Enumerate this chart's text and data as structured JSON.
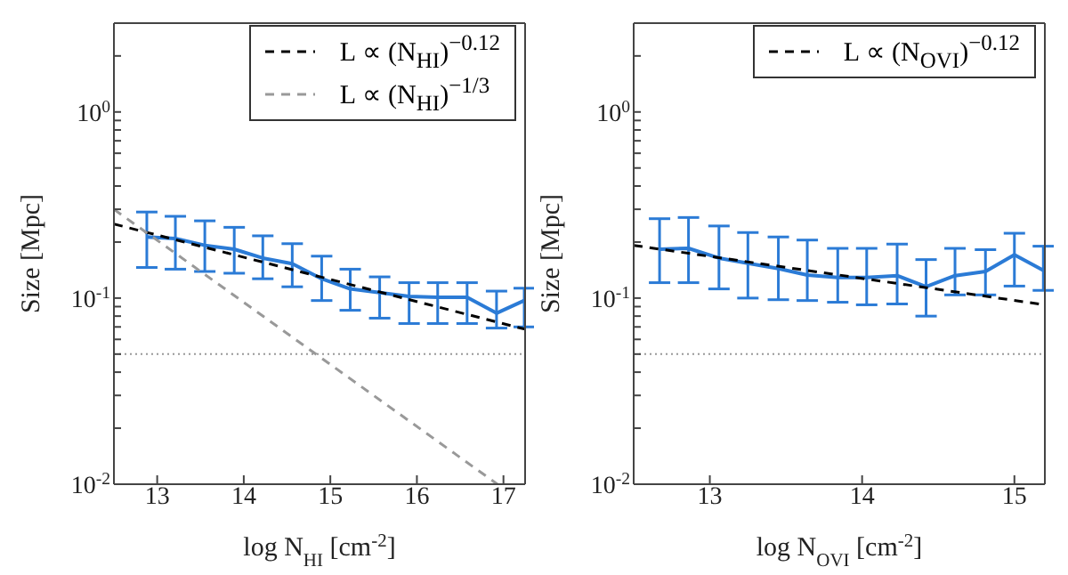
{
  "chart_data": [
    {
      "type": "line",
      "xlabel": "log N$_{HI}$ [cm$^{-2}$]",
      "ylabel": "Size [Mpc]",
      "log": "y",
      "xlim": [
        12.5,
        17.25
      ],
      "xticks": [
        13,
        14,
        15,
        16,
        17
      ],
      "ylim": [
        0.01,
        3
      ],
      "yticks": [
        {
          "value": 0.01,
          "label": "10$^{-2}$"
        },
        {
          "value": 0.02,
          "label": null
        },
        {
          "value": 0.03,
          "label": null
        },
        {
          "value": 0.04,
          "label": null
        },
        {
          "value": 0.05,
          "label": null
        },
        {
          "value": 0.06,
          "label": null
        },
        {
          "value": 0.07,
          "label": null
        },
        {
          "value": 0.08,
          "label": null
        },
        {
          "value": 0.09,
          "label": null
        },
        {
          "value": 0.1,
          "label": "10$^{-1}$"
        },
        {
          "value": 0.2,
          "label": null
        },
        {
          "value": 0.3,
          "label": null
        },
        {
          "value": 0.4,
          "label": null
        },
        {
          "value": 0.5,
          "label": null
        },
        {
          "value": 0.6,
          "label": null
        },
        {
          "value": 0.7,
          "label": null
        },
        {
          "value": 0.8,
          "label": null
        },
        {
          "value": 0.9,
          "label": null
        },
        {
          "value": 1,
          "label": "10$^{0}$"
        },
        {
          "value": 2,
          "label": null
        },
        {
          "value": 3,
          "label": null
        }
      ],
      "marker": "none",
      "legend": "top right",
      "ref_lines": [
        {
          "axis": "y",
          "value": 0.05,
          "color": "#999999",
          "line_style": "dotted"
        }
      ],
      "series": [
        {
          "color": "#2b7bd6",
          "line_style": "solid",
          "x": [
            12.88,
            13.21,
            13.55,
            13.89,
            14.22,
            14.56,
            14.9,
            15.23,
            15.57,
            15.91,
            16.24,
            16.58,
            16.92,
            17.24
          ],
          "values": [
            0.213,
            0.209,
            0.192,
            0.183,
            0.164,
            0.153,
            0.127,
            0.112,
            0.107,
            0.102,
            0.101,
            0.101,
            0.083,
            0.097
          ],
          "errors": [
            [
              0.146,
              0.29
            ],
            [
              0.143,
              0.275
            ],
            [
              0.139,
              0.26
            ],
            [
              0.136,
              0.24
            ],
            [
              0.127,
              0.216
            ],
            [
              0.115,
              0.196
            ],
            [
              0.097,
              0.168
            ],
            [
              0.086,
              0.143
            ],
            [
              0.078,
              0.13
            ],
            [
              0.073,
              0.121
            ],
            [
              0.073,
              0.121
            ],
            [
              0.073,
              0.121
            ],
            [
              0.069,
              0.109
            ],
            [
              0.07,
              0.113
            ]
          ]
        },
        {
          "name": "L ∝ (N$_{HI}$)$^{−0.12}$",
          "color": "#000000",
          "line_style": "dashed",
          "x": [
            12.5,
            17.25
          ],
          "values": [
            0.25,
            0.068
          ]
        },
        {
          "name": "L ∝ (N$_{HI}$)$^{−1/3}$",
          "color": "#999999",
          "line_style": "dashed",
          "x": [
            12.5,
            16.93
          ],
          "values": [
            0.3,
            0.01
          ]
        }
      ]
    },
    {
      "type": "line",
      "xlabel": "log N$_{OVI}$ [cm$^{-2}$]",
      "ylabel": "Size [Mpc]",
      "log": "y",
      "xlim": [
        12.5,
        15.2
      ],
      "xticks": [
        13,
        14,
        15
      ],
      "ylim": [
        0.01,
        3
      ],
      "yticks": [
        {
          "value": 0.01,
          "label": "10$^{-2}$"
        },
        {
          "value": 0.02,
          "label": null
        },
        {
          "value": 0.03,
          "label": null
        },
        {
          "value": 0.04,
          "label": null
        },
        {
          "value": 0.05,
          "label": null
        },
        {
          "value": 0.06,
          "label": null
        },
        {
          "value": 0.07,
          "label": null
        },
        {
          "value": 0.08,
          "label": null
        },
        {
          "value": 0.09,
          "label": null
        },
        {
          "value": 0.1,
          "label": "10$^{-1}$"
        },
        {
          "value": 0.2,
          "label": null
        },
        {
          "value": 0.3,
          "label": null
        },
        {
          "value": 0.4,
          "label": null
        },
        {
          "value": 0.5,
          "label": null
        },
        {
          "value": 0.6,
          "label": null
        },
        {
          "value": 0.7,
          "label": null
        },
        {
          "value": 0.8,
          "label": null
        },
        {
          "value": 0.9,
          "label": null
        },
        {
          "value": 1,
          "label": "10$^{0}$"
        },
        {
          "value": 2,
          "label": null
        },
        {
          "value": 3,
          "label": null
        }
      ],
      "marker": "none",
      "legend": "top right",
      "ref_lines": [
        {
          "axis": "y",
          "value": 0.05,
          "color": "#999999",
          "line_style": "dotted"
        }
      ],
      "series": [
        {
          "color": "#2b7bd6",
          "line_style": "solid",
          "x": [
            12.67,
            12.86,
            13.06,
            13.25,
            13.45,
            13.64,
            13.84,
            14.03,
            14.23,
            14.42,
            14.61,
            14.81,
            15.0,
            15.19
          ],
          "values": [
            0.183,
            0.185,
            0.164,
            0.154,
            0.144,
            0.133,
            0.129,
            0.129,
            0.132,
            0.115,
            0.132,
            0.139,
            0.171,
            0.141
          ],
          "errors": [
            [
              0.121,
              0.267
            ],
            [
              0.121,
              0.271
            ],
            [
              0.112,
              0.244
            ],
            [
              0.1,
              0.225
            ],
            [
              0.098,
              0.213
            ],
            [
              0.097,
              0.205
            ],
            [
              0.095,
              0.185
            ],
            [
              0.092,
              0.185
            ],
            [
              0.093,
              0.195
            ],
            [
              0.08,
              0.161
            ],
            [
              0.104,
              0.185
            ],
            [
              0.104,
              0.182
            ],
            [
              0.116,
              0.223
            ],
            [
              0.11,
              0.19
            ]
          ]
        },
        {
          "name": "L ∝ (N$_{OVI}$)$^{−0.12}$",
          "color": "#000000",
          "line_style": "dashed",
          "x": [
            12.5,
            15.2
          ],
          "values": [
            0.192,
            0.092
          ]
        }
      ]
    }
  ]
}
